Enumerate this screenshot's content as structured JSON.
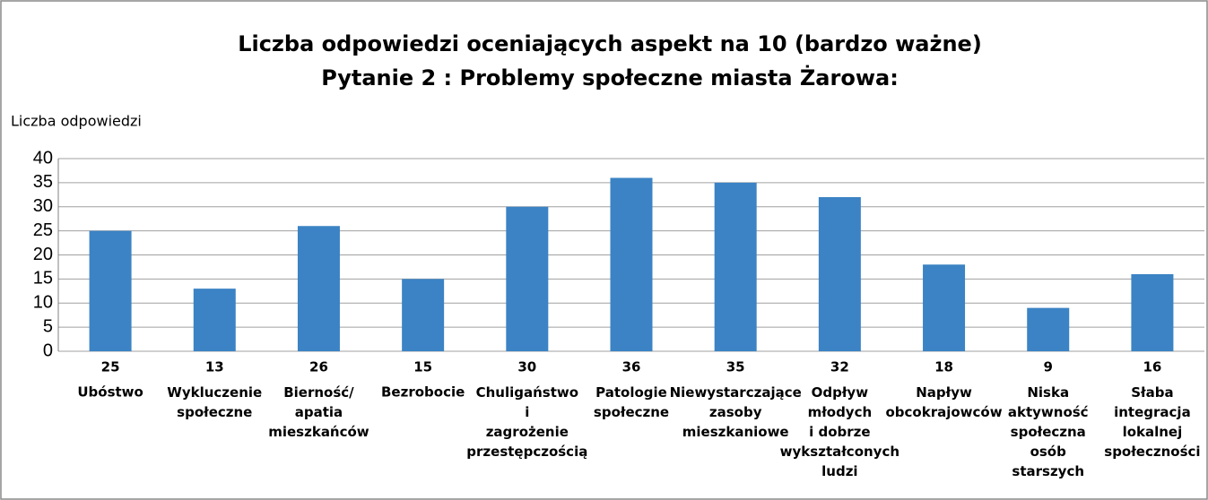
{
  "chart_data": {
    "type": "bar",
    "title": "Liczba odpowiedzi oceniających aspekt na 10 (bardzo ważne)",
    "subtitle": "Pytanie 2 : Problemy społeczne miasta Żarowa:",
    "y_label": "Liczba odpowiedzi",
    "categories": [
      "Ubóstwo",
      "Wykluczenie\nspołeczne",
      "Bierność/\napatia\nmieszkańców",
      "Bezrobocie",
      "Chuligaństwo\ni\nzagrożenie\nprzestępczością",
      "Patologie\nspołeczne",
      "Niewystarczające\nzasoby\nmieszkaniowe",
      "Odpływ\nmłodych\ni dobrze\nwykształconych\nludzi",
      "Napływ\nobcokrajowców",
      "Niska\naktywność\nspołeczna\nosób\nstarszych",
      "Słaba\nintegracja\nlokalnej\nspołeczności"
    ],
    "values": [
      25,
      13,
      26,
      15,
      30,
      36,
      35,
      32,
      18,
      9,
      16
    ],
    "color": "#3b83c4",
    "ylim": [
      0,
      40
    ],
    "yticks": [
      0,
      5,
      10,
      15,
      20,
      25,
      30,
      35,
      40
    ],
    "grid": true
  }
}
